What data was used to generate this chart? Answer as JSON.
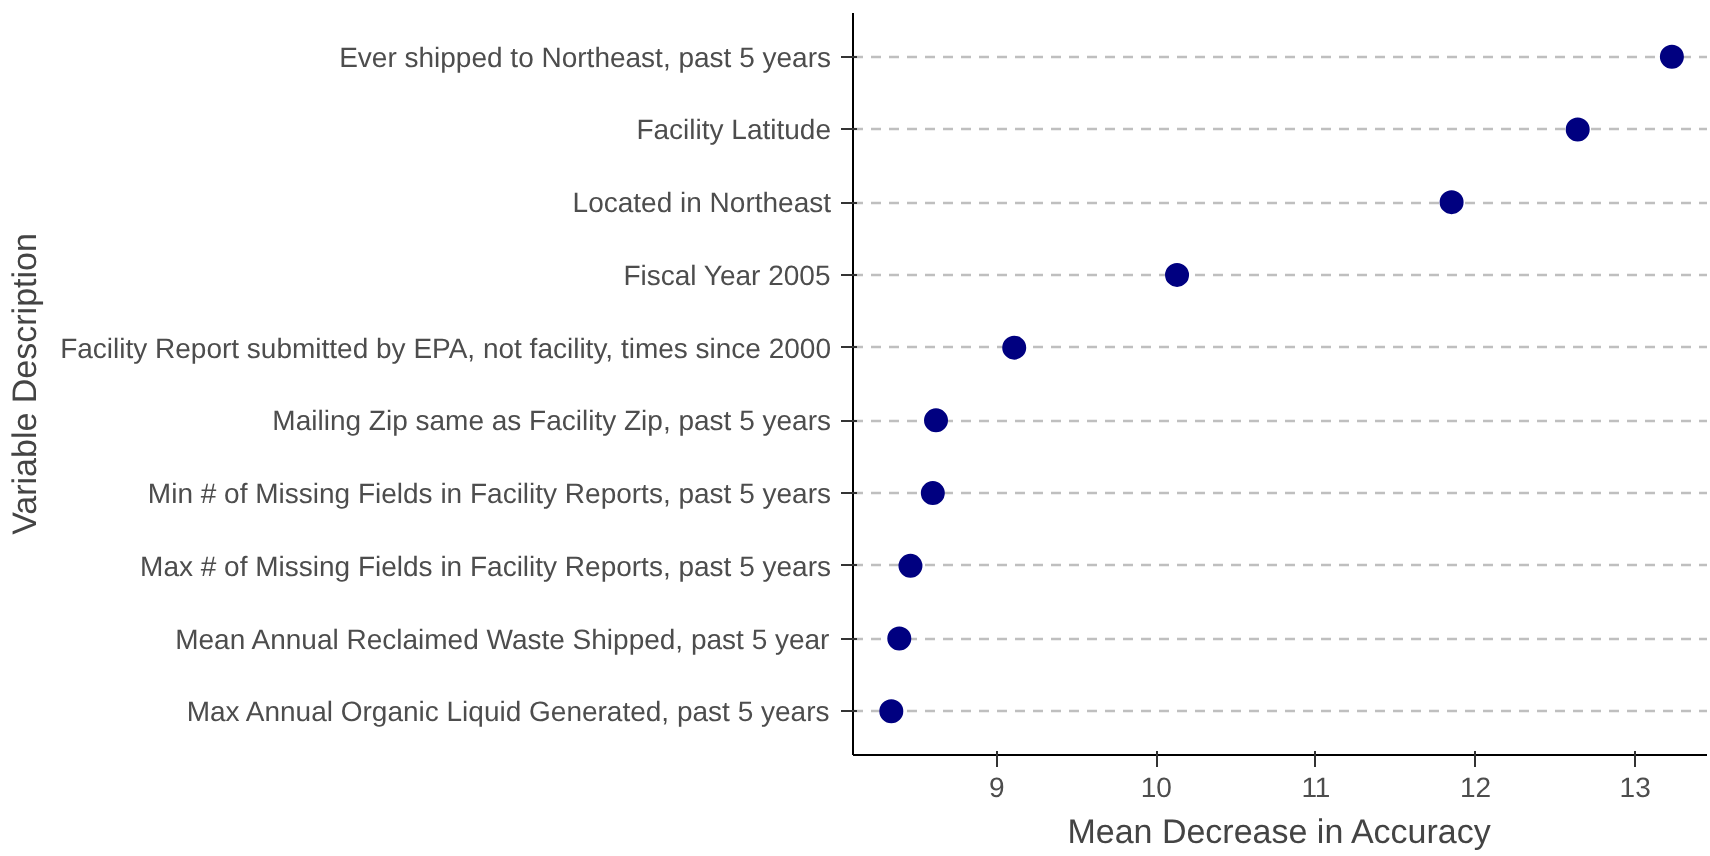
{
  "chart_data": {
    "type": "scatter",
    "xlabel": "Mean Decrease in Accuracy",
    "ylabel": "Variable Description",
    "categories": [
      "Ever shipped to Northeast, past 5 years",
      "Facility Latitude",
      "Located in Northeast",
      "Fiscal Year 2005",
      "Facility Report submitted by EPA, not facility, times since 2000",
      "Mailing Zip same as Facility Zip, past 5 years",
      "Min # of Missing Fields in Facility Reports, past 5 years",
      "Max # of Missing Fields in Facility Reports, past 5 years",
      "Mean Annual Reclaimed Waste Shipped, past 5 year",
      "Max Annual Organic Liquid Generated, past 5 years"
    ],
    "orientation": "horizontal",
    "values": [
      13.23,
      12.64,
      11.85,
      10.13,
      9.11,
      8.62,
      8.6,
      8.46,
      8.39,
      8.34
    ],
    "color": "#000080",
    "marker": "circle",
    "xlim": [
      8.1,
      13.45
    ],
    "xticks": [
      9,
      10,
      11,
      12,
      13
    ],
    "grid": "y"
  }
}
